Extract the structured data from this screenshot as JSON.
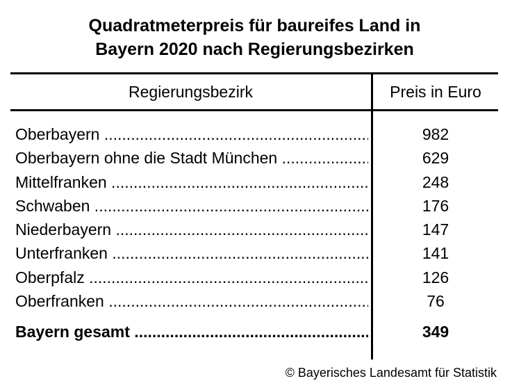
{
  "title": {
    "line1": "Quadratmeterpreis für baureifes Land in",
    "line2": "Bayern 2020 nach Regierungsbezirken"
  },
  "table": {
    "headers": {
      "region": "Regierungsbezirk",
      "price": "Preis in Euro"
    },
    "rows": [
      {
        "name": "Oberbayern",
        "value": "982"
      },
      {
        "name": "Oberbayern ohne die Stadt München",
        "value": "629"
      },
      {
        "name": "Mittelfranken",
        "value": "248"
      },
      {
        "name": "Schwaben",
        "value": "176"
      },
      {
        "name": "Niederbayern",
        "value": "147"
      },
      {
        "name": "Unterfranken",
        "value": "141"
      },
      {
        "name": "Oberpfalz",
        "value": "126"
      },
      {
        "name": "Oberfranken",
        "value": "76"
      }
    ],
    "total": {
      "name": "Bayern gesamt",
      "value": "349"
    }
  },
  "footer": {
    "copyright": "© Bayerisches Landesamt für Statistik"
  }
}
